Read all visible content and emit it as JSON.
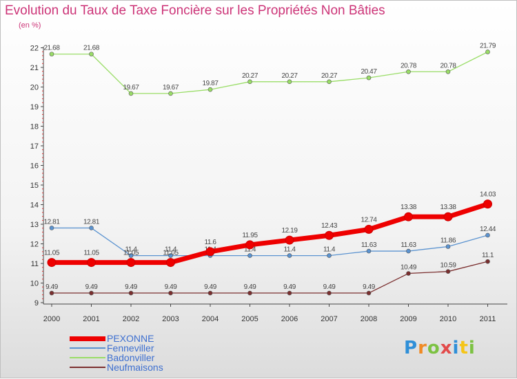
{
  "chart_data": {
    "type": "line",
    "title": "Evolution du Taux de Taxe Foncière sur les Propriétés Non Bâties",
    "subtitle": "(en %)",
    "xlabel": "",
    "ylabel": "",
    "ylim": [
      9,
      22
    ],
    "yticks": [
      "9",
      "10",
      "11",
      "12",
      "13",
      "14",
      "15",
      "16",
      "17",
      "18",
      "19",
      "20",
      "21",
      "22"
    ],
    "categories": [
      "2000",
      "2001",
      "2002",
      "2003",
      "2004",
      "2005",
      "2006",
      "2007",
      "2008",
      "2009",
      "2010",
      "2011"
    ],
    "series": [
      {
        "name": "PEXONNE",
        "color": "#ee0000",
        "values": [
          11.05,
          11.05,
          11.05,
          11.05,
          11.6,
          11.95,
          12.19,
          12.43,
          12.74,
          13.38,
          13.38,
          14.03
        ],
        "labels": [
          "11.05",
          "11.05",
          "11.05",
          "11.05",
          "11.6",
          "11.95",
          "12.19",
          "12.43",
          "12.74",
          "13.38",
          "13.38",
          "14.03"
        ]
      },
      {
        "name": "Fenneviller",
        "color": "#5b93d0",
        "values": [
          12.81,
          12.81,
          11.4,
          11.4,
          11.4,
          11.4,
          11.4,
          11.4,
          11.63,
          11.63,
          11.86,
          12.44
        ],
        "labels": [
          "12.81",
          "12.81",
          "11.4",
          "11.4",
          "11.4",
          "11.4",
          "11.4",
          "11.4",
          "11.63",
          "11.63",
          "11.86",
          "12.44"
        ]
      },
      {
        "name": "Badonviller",
        "color": "#99dd66",
        "values": [
          21.68,
          21.68,
          19.67,
          19.67,
          19.87,
          20.27,
          20.27,
          20.27,
          20.47,
          20.78,
          20.78,
          21.79
        ],
        "labels": [
          "21.68",
          "21.68",
          "19.67",
          "19.67",
          "19.87",
          "20.27",
          "20.27",
          "20.27",
          "20.47",
          "20.78",
          "20.78",
          "21.79"
        ]
      },
      {
        "name": "Neufmaisons",
        "color": "#7a2e2e",
        "values": [
          9.49,
          9.49,
          9.49,
          9.49,
          9.49,
          9.49,
          9.49,
          9.49,
          9.49,
          10.49,
          10.59,
          11.1
        ],
        "labels": [
          "9.49",
          "9.49",
          "9.49",
          "9.49",
          "9.49",
          "9.49",
          "9.49",
          "9.49",
          "9.49",
          "10.49",
          "10.59",
          "11.1"
        ]
      }
    ],
    "legend_position": "bottom-left",
    "grid": false
  },
  "brand": {
    "letters": [
      "P",
      "r",
      "o",
      "x",
      "i",
      "t",
      "i"
    ],
    "colors": [
      "#2f8fd8",
      "#f08a24",
      "#7cc242",
      "#e24b4b",
      "#2f8fd8",
      "#f5c518",
      "#7cc242"
    ]
  }
}
